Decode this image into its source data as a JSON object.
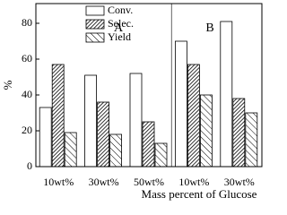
{
  "chart_data": {
    "type": "bar",
    "categories": [
      "10wt%",
      "30wt%",
      "50wt%",
      "10wt%",
      "30wt%"
    ],
    "annotations": [
      "A",
      "B"
    ],
    "series": [
      {
        "name": "Conv.",
        "color": "#ffffff",
        "values": [
          33,
          51,
          52,
          70,
          81
        ]
      },
      {
        "name": "Selec.",
        "color": "#444444",
        "values": [
          57,
          36,
          25,
          57,
          38
        ]
      },
      {
        "name": "Yield",
        "color": "#888888",
        "values": [
          19,
          18,
          13,
          40,
          30
        ]
      }
    ],
    "x_label": "Mass percent of Glucose",
    "y_label": "%",
    "ylim": [
      0,
      91
    ],
    "yticks": [
      0,
      20,
      40,
      60,
      80
    ],
    "grid": false
  }
}
